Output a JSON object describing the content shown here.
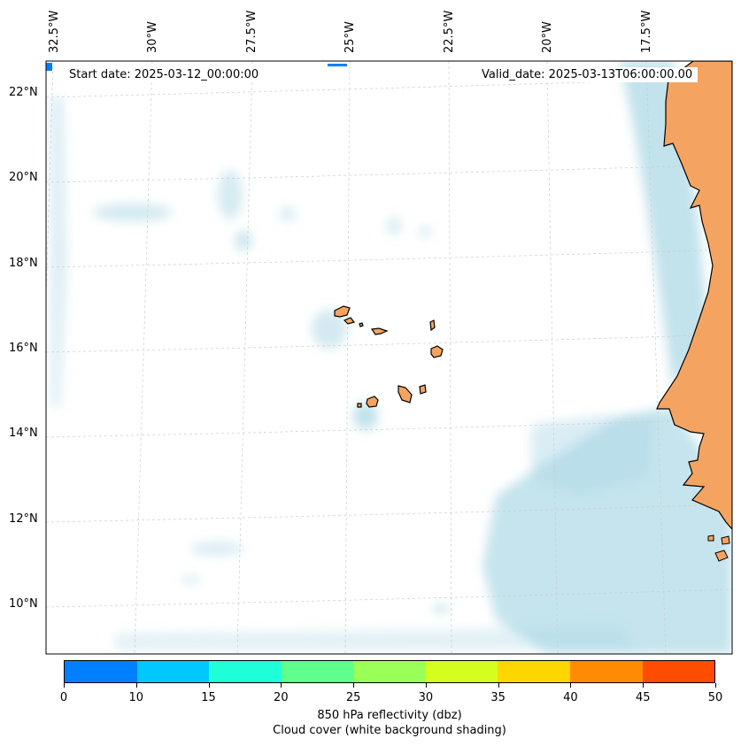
{
  "map": {
    "start_date": "Start date: 2025-03-12_00:00:00",
    "valid_date": "Valid_date: 2025-03-13T06:00:00.00",
    "lon_labels": [
      "32.5°W",
      "30°W",
      "27.5°W",
      "25°W",
      "22.5°W",
      "20°W",
      "17.5°W"
    ],
    "lat_labels": [
      "22°N",
      "20°N",
      "18°N",
      "16°N",
      "14°N",
      "12°N",
      "10°N"
    ],
    "colors": {
      "land": "#f4a460",
      "cloud": "#add8e6",
      "ocean": "#ffffff",
      "gridline": "#cccccc"
    }
  },
  "colorbar": {
    "ticks": [
      "0",
      "10",
      "15",
      "20",
      "25",
      "30",
      "35",
      "40",
      "45",
      "50"
    ],
    "colors": [
      "#0080ff",
      "#00c8ff",
      "#1effd9",
      "#5eff8c",
      "#9aff57",
      "#d4ff1e",
      "#ffd700",
      "#ff8c00",
      "#ff4d00"
    ],
    "label": "850 hPa reflectivity (dbz)",
    "sublabel": "Cloud cover (white background shading)"
  }
}
